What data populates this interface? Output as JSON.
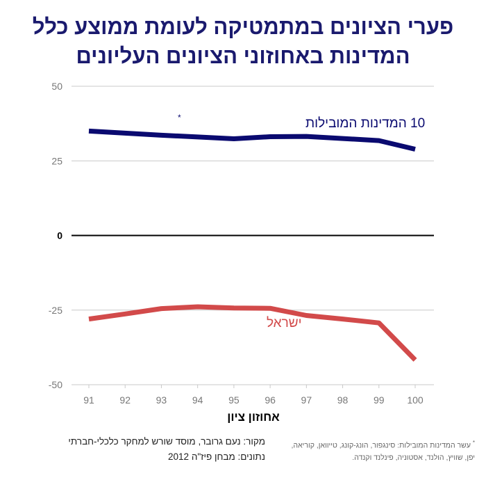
{
  "title_line1": "פערי הציונים במתמטיקה לעומת ממוצע כלל",
  "title_line2": "המדינות באחוזוני הציונים העליונים",
  "source_line1": "מקור: נעם גרובר, מוסד שורש למחקר כלכלי-חברתי",
  "source_line2": "נתונים: מבחן פיז\"ה 2012",
  "footnote_mark": "*",
  "footnote_text": "עשר המדינות המובילות: סינגפור, הונג-קונג, טייוואן, קוריאה, יפן, שוויץ, הולנד, אסטוניה, פינלנד וקנדה.",
  "colors": {
    "title": "#1a1a6e",
    "series_top10": "#0a0a70",
    "series_israel": "#d24a4a",
    "grid": "#c8c8c8",
    "zero_line": "#000000"
  },
  "chart_data": {
    "type": "line",
    "xlabel": "אחוזון ציון",
    "ylabel": "",
    "x": [
      "91",
      "92",
      "93",
      "94",
      "95",
      "96",
      "97",
      "98",
      "99",
      "100"
    ],
    "ylim": [
      -50,
      50
    ],
    "yticks": [
      50,
      25,
      0,
      -25,
      -50
    ],
    "grid": true,
    "series": [
      {
        "name": "10 המדינות המובילות",
        "name_mark": "*",
        "values": [
          35,
          34.3,
          33.6,
          33.0,
          32.4,
          33.1,
          33.2,
          32.5,
          31.8,
          28.9
        ]
      },
      {
        "name": "ישראל",
        "values": [
          -28,
          -26.3,
          -24.5,
          -23.9,
          -24.3,
          -24.4,
          -26.8,
          -28.0,
          -29.3,
          -41.7
        ]
      }
    ]
  }
}
